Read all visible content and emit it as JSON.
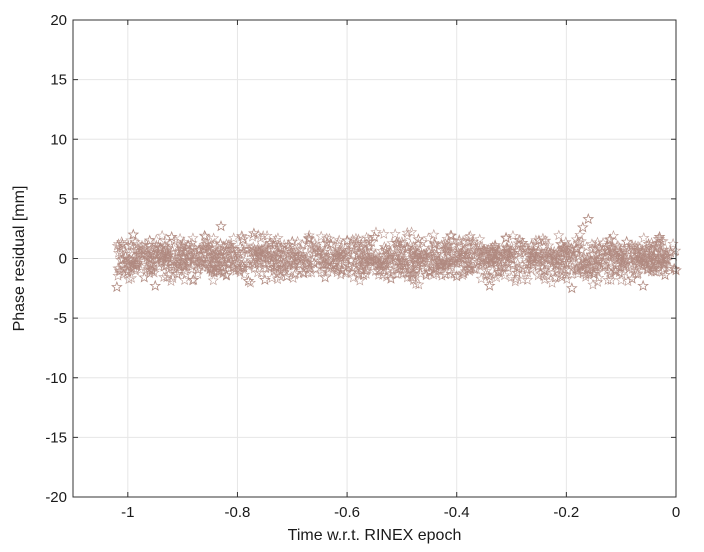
{
  "chart_data": {
    "type": "scatter",
    "xlabel": "Time w.r.t. RINEX epoch",
    "ylabel": "Phase residual [mm]",
    "xlim": [
      -1.1,
      0
    ],
    "ylim": [
      -20,
      20
    ],
    "x_ticks": [
      -1,
      -0.8,
      -0.6,
      -0.4,
      -0.2,
      0
    ],
    "x_tick_labels": [
      "-1",
      "-0.8",
      "-0.6",
      "-0.4",
      "-0.2",
      "0"
    ],
    "y_ticks": [
      -20,
      -15,
      -10,
      -5,
      0,
      5,
      10,
      15,
      20
    ],
    "y_tick_labels": [
      "-20",
      "-15",
      "-10",
      "-5",
      "0",
      "5",
      "10",
      "15",
      "20"
    ],
    "grid": true,
    "marker": "pentagram",
    "marker_color": "#b08a80",
    "series": [
      {
        "x_range": [
          -1.02,
          0
        ],
        "points": [
          [
            -1.02,
            -2.4
          ],
          [
            -1.01,
            1.2
          ],
          [
            -1.0,
            -1.1
          ],
          [
            -0.99,
            2.0
          ],
          [
            -0.98,
            0.4
          ],
          [
            -0.97,
            -1.6
          ],
          [
            -0.96,
            1.5
          ],
          [
            -0.95,
            -2.3
          ],
          [
            -0.94,
            0.9
          ],
          [
            -0.93,
            -0.6
          ],
          [
            -0.92,
            1.8
          ],
          [
            -0.91,
            -1.3
          ],
          [
            -0.9,
            0.2
          ],
          [
            -0.89,
            1.1
          ],
          [
            -0.88,
            -1.8
          ],
          [
            -0.87,
            0.7
          ],
          [
            -0.86,
            1.9
          ],
          [
            -0.85,
            -0.9
          ],
          [
            -0.84,
            0.3
          ],
          [
            -0.83,
            2.7
          ],
          [
            -0.82,
            -1.4
          ],
          [
            -0.81,
            0.8
          ],
          [
            -0.8,
            -0.3
          ],
          [
            -0.79,
            1.6
          ],
          [
            -0.78,
            -1.9
          ],
          [
            -0.77,
            2.1
          ],
          [
            -0.76,
            0.5
          ],
          [
            -0.75,
            -1.8
          ],
          [
            -0.74,
            1.3
          ],
          [
            -0.73,
            -0.7
          ],
          [
            -0.72,
            0.9
          ],
          [
            -0.71,
            -1.5
          ],
          [
            -0.7,
            1.4
          ],
          [
            -0.69,
            0.1
          ],
          [
            -0.68,
            -1.2
          ],
          [
            -0.67,
            1.7
          ],
          [
            -0.66,
            -0.4
          ],
          [
            -0.65,
            0.6
          ],
          [
            -0.64,
            -1.6
          ],
          [
            -0.63,
            1.2
          ],
          [
            -0.62,
            0.2
          ],
          [
            -0.61,
            -1.0
          ],
          [
            -0.6,
            1.5
          ],
          [
            -0.59,
            -0.8
          ],
          [
            -0.58,
            0.4
          ],
          [
            -0.57,
            -1.4
          ],
          [
            -0.56,
            1.0
          ],
          [
            -0.55,
            1.8
          ],
          [
            -0.54,
            -0.5
          ],
          [
            -0.53,
            0.7
          ],
          [
            -0.52,
            -1.7
          ],
          [
            -0.51,
            1.3
          ],
          [
            -0.5,
            -0.2
          ],
          [
            -0.49,
            0.9
          ],
          [
            -0.48,
            -1.3
          ],
          [
            -0.47,
            1.6
          ],
          [
            -0.46,
            0.3
          ],
          [
            -0.45,
            -1.1
          ],
          [
            -0.44,
            1.2
          ],
          [
            -0.43,
            -0.6
          ],
          [
            -0.42,
            0.8
          ],
          [
            -0.41,
            1.9
          ],
          [
            -0.4,
            -1.5
          ],
          [
            -0.39,
            0.5
          ],
          [
            -0.38,
            -0.9
          ],
          [
            -0.37,
            1.4
          ],
          [
            -0.36,
            -0.3
          ],
          [
            -0.35,
            0.7
          ],
          [
            -0.34,
            -2.3
          ],
          [
            -0.33,
            1.1
          ],
          [
            -0.32,
            -0.7
          ],
          [
            -0.31,
            1.7
          ],
          [
            -0.3,
            0.0
          ],
          [
            -0.29,
            -1.2
          ],
          [
            -0.28,
            1.3
          ],
          [
            -0.27,
            -0.5
          ],
          [
            -0.26,
            0.6
          ],
          [
            -0.25,
            1.5
          ],
          [
            -0.24,
            -1.0
          ],
          [
            -0.23,
            0.4
          ],
          [
            -0.22,
            -1.6
          ],
          [
            -0.21,
            1.2
          ],
          [
            -0.2,
            -0.4
          ],
          [
            -0.19,
            -2.5
          ],
          [
            -0.18,
            0.8
          ],
          [
            -0.17,
            2.6
          ],
          [
            -0.16,
            3.3
          ],
          [
            -0.15,
            -1.3
          ],
          [
            -0.14,
            0.9
          ],
          [
            -0.13,
            -0.6
          ],
          [
            -0.12,
            1.6
          ],
          [
            -0.11,
            -1.1
          ],
          [
            -0.1,
            0.3
          ],
          [
            -0.09,
            1.4
          ],
          [
            -0.08,
            -1.7
          ],
          [
            -0.07,
            0.7
          ],
          [
            -0.06,
            -2.3
          ],
          [
            -0.05,
            1.2
          ],
          [
            -0.04,
            -0.8
          ],
          [
            -0.03,
            1.8
          ],
          [
            -0.02,
            -1.4
          ],
          [
            -0.01,
            0.5
          ],
          [
            0.0,
            -1.0
          ]
        ]
      }
    ]
  }
}
